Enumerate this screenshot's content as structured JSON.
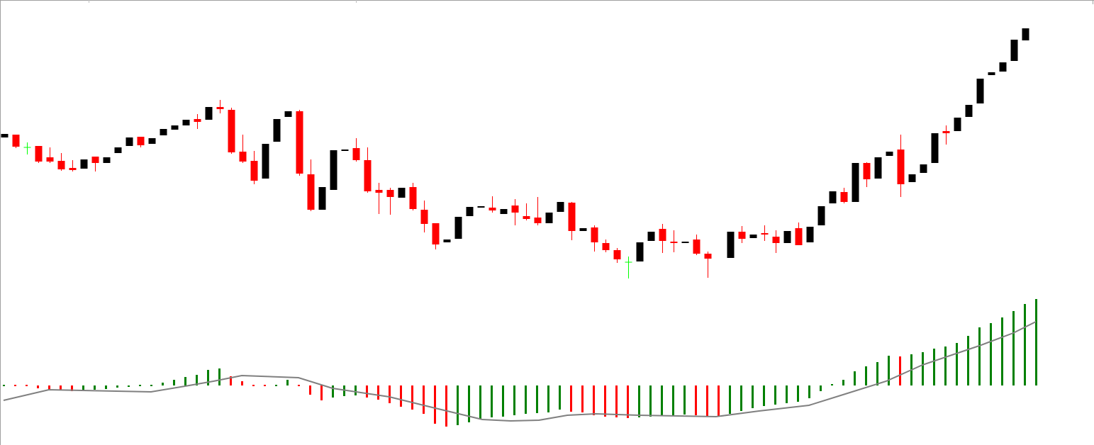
{
  "chart_data": [
    {
      "type": "candlestick",
      "x": [
        0,
        1,
        2,
        3,
        4,
        5,
        6,
        7,
        8,
        9,
        10,
        11,
        12,
        13,
        14,
        15,
        16,
        17,
        18,
        19,
        20,
        21,
        22,
        23,
        24,
        25,
        26,
        27,
        28,
        29,
        30,
        31,
        32,
        33,
        34,
        35,
        36,
        37,
        38,
        39,
        40,
        41,
        42,
        43,
        44,
        45,
        46,
        47,
        48,
        49,
        50,
        51,
        52,
        53,
        54,
        55,
        56,
        57,
        58,
        59,
        60,
        61,
        62,
        64,
        65,
        66,
        67,
        68,
        69,
        70,
        71,
        72,
        73,
        74,
        75,
        76,
        77,
        78,
        79,
        80,
        81,
        82,
        83,
        84,
        85,
        86,
        87,
        88,
        89,
        90
      ],
      "open": [
        406,
        410,
        392,
        394,
        378,
        373,
        363,
        362,
        379,
        370,
        384,
        394,
        407,
        397,
        409,
        417,
        423,
        432,
        431,
        449,
        445,
        386,
        373,
        348,
        400,
        435,
        443,
        354,
        304,
        332,
        387,
        391,
        374,
        332,
        332,
        321,
        336,
        304,
        285,
        258,
        263,
        295,
        307,
        307,
        298,
        310,
        295,
        293,
        285,
        301,
        314,
        274,
        279,
        257,
        247,
        230,
        231,
        260,
        277,
        259,
        257,
        262,
        242,
        236,
        273,
        264,
        271,
        266,
        257,
        278,
        258,
        282,
        313,
        329,
        315,
        370,
        348,
        380,
        389,
        343,
        356,
        370,
        415,
        415,
        435,
        454,
        494,
        499,
        514,
        543
      ],
      "high": [
        411,
        410,
        399,
        394,
        392,
        384,
        374,
        375,
        379,
        378,
        392,
        406,
        407,
        405,
        418,
        423,
        431,
        439,
        449,
        459,
        448,
        410,
        387,
        397,
        432,
        443,
        445,
        375,
        336,
        388,
        389,
        405,
        392,
        342,
        335,
        335,
        342,
        317,
        285,
        262,
        294,
        308,
        309,
        323,
        305,
        319,
        313,
        322,
        300,
        315,
        315,
        278,
        282,
        262,
        250,
        238,
        258,
        273,
        284,
        275,
        259,
        269,
        245,
        273,
        281,
        269,
        282,
        275,
        274,
        286,
        280,
        309,
        330,
        335,
        370,
        371,
        378,
        386,
        410,
        354,
        368,
        412,
        423,
        434,
        452,
        489,
        498,
        512,
        544,
        560
      ],
      "low": [
        406,
        391,
        382,
        370,
        370,
        359,
        358,
        362,
        358,
        370,
        384,
        394,
        392,
        397,
        409,
        417,
        423,
        418,
        431,
        440,
        383,
        370,
        340,
        348,
        400,
        435,
        352,
        302,
        304,
        332,
        387,
        372,
        328,
        298,
        297,
        321,
        303,
        272,
        248,
        258,
        263,
        295,
        307,
        300,
        298,
        282,
        289,
        282,
        285,
        301,
        261,
        274,
        245,
        244,
        229,
        207,
        231,
        260,
        243,
        244,
        257,
        240,
        208,
        236,
        257,
        264,
        260,
        243,
        257,
        254,
        258,
        282,
        313,
        313,
        315,
        336,
        348,
        380,
        322,
        343,
        356,
        370,
        396,
        415,
        435,
        454,
        494,
        499,
        514,
        543
      ],
      "close": [
        411,
        393,
        392,
        372,
        372,
        361,
        360,
        375,
        370,
        378,
        392,
        406,
        395,
        405,
        418,
        423,
        431,
        428,
        449,
        446,
        385,
        372,
        345,
        397,
        432,
        443,
        355,
        304,
        336,
        388,
        389,
        374,
        330,
        328,
        322,
        335,
        305,
        284,
        255,
        262,
        294,
        308,
        309,
        303,
        305,
        300,
        291,
        285,
        300,
        315,
        274,
        278,
        258,
        247,
        234,
        230,
        258,
        273,
        260,
        257,
        259,
        242,
        235,
        273,
        263,
        269,
        269,
        257,
        274,
        254,
        280,
        309,
        330,
        315,
        370,
        347,
        378,
        386,
        340,
        354,
        368,
        412,
        412,
        434,
        452,
        489,
        498,
        512,
        544,
        560
      ],
      "up_color": "#000000",
      "down_color": "#ff0000",
      "doji_color": "#00ff00",
      "xlim": [
        -0.375,
        96.0625
      ],
      "ylim": [
        0,
        600
      ]
    },
    {
      "type": "histogram",
      "x": [
        0,
        1,
        2,
        3,
        4,
        5,
        6,
        7,
        8,
        9,
        10,
        11,
        12,
        13,
        14,
        15,
        16,
        17,
        18,
        19,
        20,
        21,
        22,
        23,
        24,
        25,
        26,
        27,
        28,
        29,
        30,
        31,
        32,
        33,
        34,
        35,
        36,
        37,
        38,
        39,
        40,
        41,
        42,
        43,
        44,
        45,
        46,
        47,
        48,
        49,
        50,
        51,
        52,
        53,
        54,
        55,
        56,
        57,
        58,
        59,
        60,
        61,
        62,
        63,
        64,
        65,
        66,
        67,
        68,
        69,
        70,
        71,
        72,
        73,
        74,
        75,
        76,
        77,
        78,
        79,
        80,
        81,
        82,
        83,
        84,
        85,
        86,
        87,
        88,
        89,
        90,
        91
      ],
      "values": [
        1,
        1,
        1,
        -4,
        -6,
        -7,
        -8,
        -7,
        -6,
        -5,
        -3,
        -2,
        -1,
        1,
        4,
        8,
        12,
        15,
        22,
        24,
        13,
        6,
        0,
        -1,
        1,
        8,
        1,
        -13,
        -21,
        -17,
        -15,
        -14,
        -17,
        -20,
        -25,
        -30,
        -34,
        -40,
        -54,
        -58,
        -56,
        -52,
        -48,
        -45,
        -44,
        -42,
        -40,
        -39,
        -38,
        -34,
        -37,
        -38,
        -42,
        -44,
        -45,
        -46,
        -45,
        -44,
        -43,
        -42,
        -41,
        -42,
        -43,
        -44,
        -40,
        -36,
        -32,
        -29,
        -27,
        -25,
        -23,
        -18,
        -8,
        2,
        8,
        20,
        27,
        33,
        42,
        41,
        44,
        47,
        52,
        55,
        60,
        70,
        82,
        88,
        96,
        105,
        115,
        122
      ],
      "up_color": "#008000",
      "down_color": "#ff0000",
      "signal": {
        "x": [
          0,
          4,
          13,
          16,
          18.5,
          21,
          26,
          29,
          34,
          37.8,
          42.2,
          44.7,
          47.2,
          49.7,
          52.2,
          56,
          62.8,
          66.6,
          71,
          74,
          77.8,
          81,
          86,
          89,
          91
        ],
        "values": [
          -21,
          -6,
          -9,
          -1,
          6,
          14,
          11,
          -4,
          -16,
          -31,
          -48,
          -50,
          -49,
          -42,
          -40,
          -42,
          -44,
          -36,
          -28,
          -13,
          6,
          29,
          56,
          74,
          90
        ],
        "color": "#808080"
      },
      "xlim": [
        -0.3125,
        96.125
      ],
      "ylim": [
        -80,
        140
      ]
    }
  ]
}
